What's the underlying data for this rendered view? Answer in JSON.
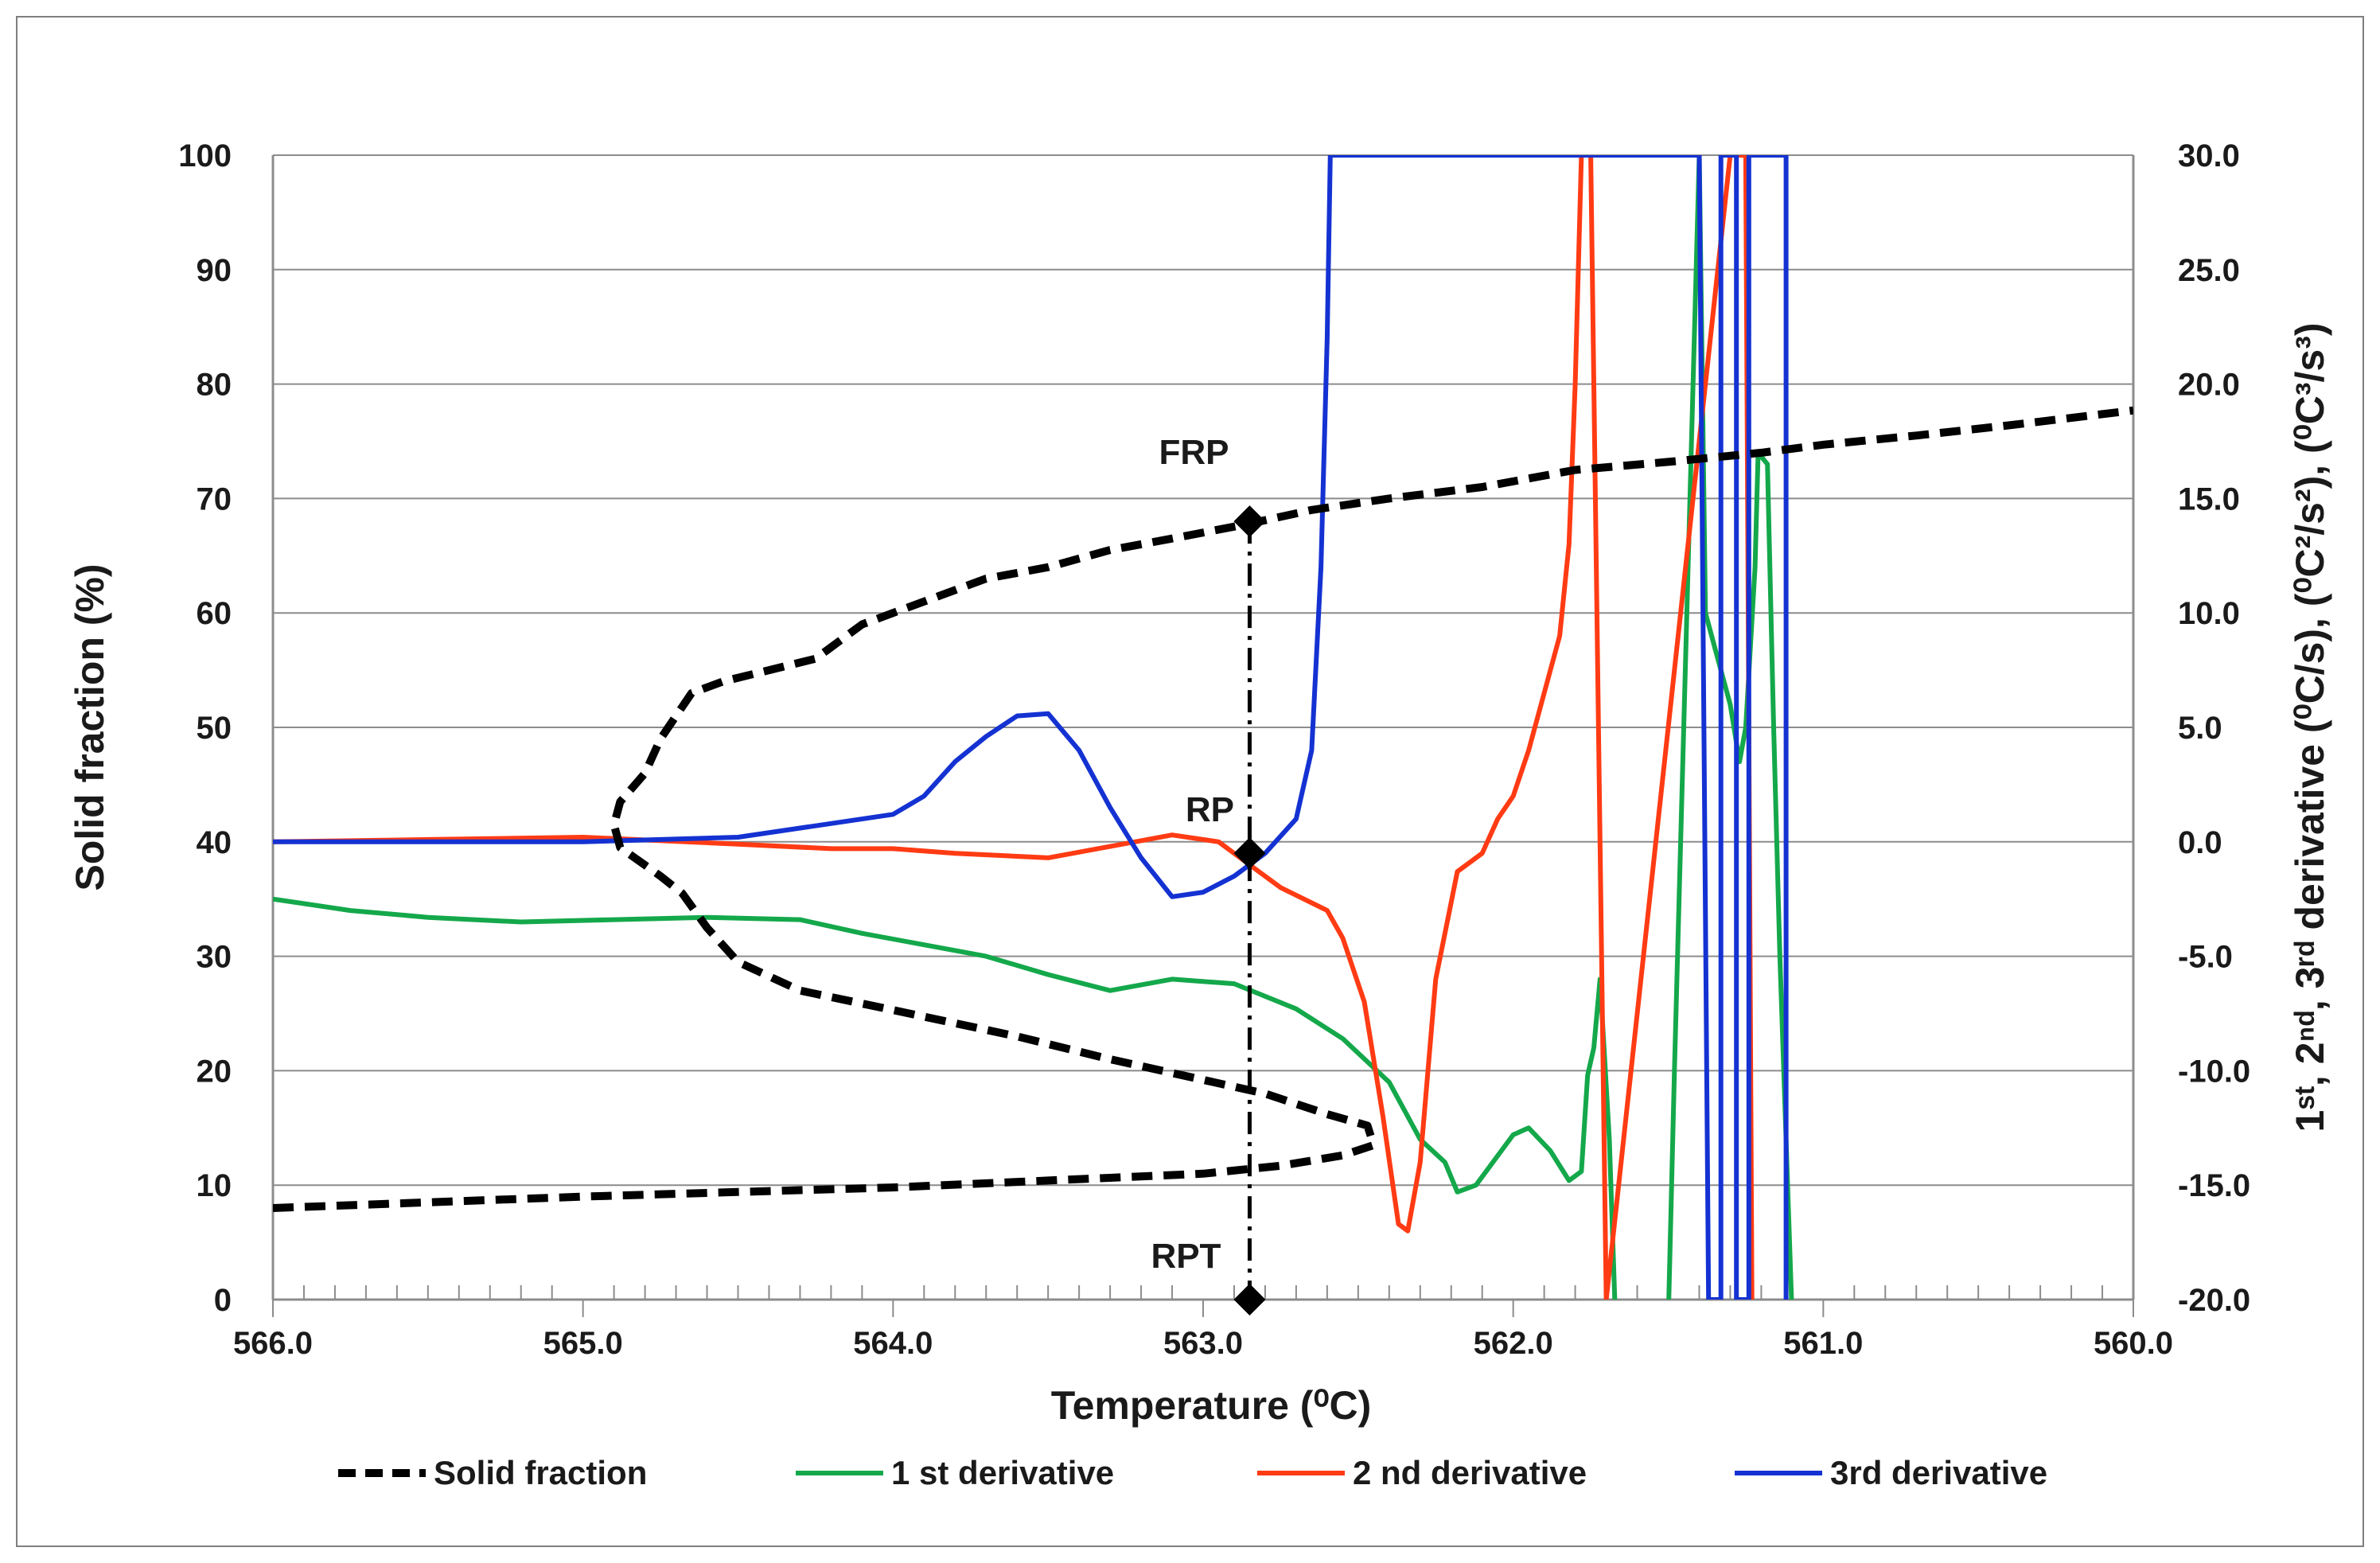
{
  "chart_data": {
    "type": "line",
    "xlabel": "Temperature (⁰C)",
    "ylabel": "Solid fraction (%)",
    "y2label": "1ˢᵗ, 2ⁿᵈ, 3ʳᵈ derivative (⁰C/s), (⁰C²/s²), (⁰C³/s³)",
    "xlim": [
      566.0,
      560.0
    ],
    "ylim": [
      0,
      100
    ],
    "y2lim": [
      -20.0,
      30.0
    ],
    "x_ticks": [
      "566.0",
      "565.0",
      "564.0",
      "563.0",
      "562.0",
      "561.0",
      "560.0"
    ],
    "y_ticks": [
      "0",
      "10",
      "20",
      "30",
      "40",
      "50",
      "60",
      "70",
      "80",
      "90",
      "100"
    ],
    "y2_ticks": [
      "-20.0",
      "-15.0",
      "-10.0",
      "-5.0",
      "0.0",
      "5.0",
      "10.0",
      "15.0",
      "20.0",
      "25.0",
      "30.0"
    ],
    "grid": true,
    "legend_position": "bottom",
    "series": [
      {
        "name": "Solid fraction",
        "color": "#000000",
        "style": "dashed",
        "axis": "left",
        "points": [
          [
            566.0,
            8.0
          ],
          [
            565.5,
            8.5
          ],
          [
            565.0,
            9.0
          ],
          [
            564.5,
            9.4
          ],
          [
            564.0,
            9.8
          ],
          [
            563.5,
            10.4
          ],
          [
            563.0,
            11.0
          ],
          [
            562.75,
            11.7
          ],
          [
            562.55,
            12.6
          ],
          [
            562.45,
            13.5
          ],
          [
            562.47,
            15.2
          ],
          [
            562.6,
            16.2
          ],
          [
            562.8,
            18.0
          ],
          [
            563.0,
            19.2
          ],
          [
            563.3,
            21.0
          ],
          [
            563.6,
            23.0
          ],
          [
            564.0,
            25.3
          ],
          [
            564.3,
            27.0
          ],
          [
            564.5,
            29.5
          ],
          [
            564.6,
            32.5
          ],
          [
            564.68,
            35.5
          ],
          [
            564.75,
            37.0
          ],
          [
            564.88,
            39.5
          ],
          [
            564.9,
            41.5
          ],
          [
            564.88,
            43.5
          ],
          [
            564.8,
            46.0
          ],
          [
            564.75,
            49.0
          ],
          [
            564.7,
            51.0
          ],
          [
            564.65,
            53.0
          ],
          [
            564.55,
            54.0
          ],
          [
            564.4,
            55.0
          ],
          [
            564.25,
            56.0
          ],
          [
            564.2,
            57.0
          ],
          [
            564.1,
            59.0
          ],
          [
            564.0,
            60.0
          ],
          [
            563.9,
            61.0
          ],
          [
            563.7,
            63.0
          ],
          [
            563.5,
            64.0
          ],
          [
            563.3,
            65.5
          ],
          [
            563.1,
            66.5
          ],
          [
            562.85,
            67.8
          ],
          [
            562.65,
            69.0
          ],
          [
            562.4,
            70.0
          ],
          [
            562.1,
            71.0
          ],
          [
            561.8,
            72.5
          ],
          [
            561.5,
            73.2
          ],
          [
            561.2,
            74.0
          ],
          [
            561.0,
            74.7
          ],
          [
            560.7,
            75.5
          ],
          [
            560.4,
            76.4
          ],
          [
            560.0,
            77.7
          ]
        ]
      },
      {
        "name": "1 st derivative",
        "color": "#14a84b",
        "axis": "right",
        "points": [
          [
            566.0,
            -2.5
          ],
          [
            565.75,
            -3.0
          ],
          [
            565.5,
            -3.3
          ],
          [
            565.2,
            -3.5
          ],
          [
            564.9,
            -3.4
          ],
          [
            564.6,
            -3.3
          ],
          [
            564.3,
            -3.4
          ],
          [
            564.1,
            -4.0
          ],
          [
            563.9,
            -4.5
          ],
          [
            563.7,
            -5.0
          ],
          [
            563.5,
            -5.8
          ],
          [
            563.3,
            -6.5
          ],
          [
            563.1,
            -6.0
          ],
          [
            562.9,
            -6.2
          ],
          [
            562.7,
            -7.3
          ],
          [
            562.55,
            -8.6
          ],
          [
            562.4,
            -10.5
          ],
          [
            562.3,
            -13.0
          ],
          [
            562.22,
            -14.0
          ],
          [
            562.18,
            -15.3
          ],
          [
            562.12,
            -15.0
          ],
          [
            562.0,
            -12.8
          ],
          [
            561.95,
            -12.5
          ],
          [
            561.88,
            -13.5
          ],
          [
            561.82,
            -14.8
          ],
          [
            561.78,
            -14.4
          ],
          [
            561.76,
            -10.2
          ],
          [
            561.74,
            -9.0
          ],
          [
            561.72,
            -6.0
          ],
          [
            561.69,
            -13.0
          ],
          [
            561.67,
            -21.0
          ],
          [
            561.5,
            -21.0
          ],
          [
            561.48,
            -10.0
          ],
          [
            561.45,
            5.0
          ],
          [
            561.42,
            20.0
          ],
          [
            561.4,
            30.0
          ],
          [
            561.38,
            10.0
          ],
          [
            561.35,
            8.5
          ],
          [
            561.3,
            6.0
          ],
          [
            561.27,
            3.5
          ],
          [
            561.25,
            5.0
          ],
          [
            561.22,
            12.0
          ],
          [
            561.21,
            17.0
          ],
          [
            561.18,
            16.5
          ],
          [
            561.16,
            5.0
          ],
          [
            561.14,
            -5.0
          ],
          [
            561.12,
            -13.0
          ],
          [
            561.1,
            -21.0
          ]
        ]
      },
      {
        "name": "2 nd derivative",
        "color": "#ff3b14",
        "axis": "right",
        "points": [
          [
            566.0,
            0.0
          ],
          [
            565.5,
            0.1
          ],
          [
            565.0,
            0.2
          ],
          [
            564.5,
            -0.1
          ],
          [
            564.2,
            -0.3
          ],
          [
            564.0,
            -0.3
          ],
          [
            563.8,
            -0.5
          ],
          [
            563.5,
            -0.7
          ],
          [
            563.3,
            -0.2
          ],
          [
            563.1,
            0.3
          ],
          [
            562.95,
            0.0
          ],
          [
            562.85,
            -1.0
          ],
          [
            562.75,
            -2.0
          ],
          [
            562.6,
            -3.0
          ],
          [
            562.55,
            -4.2
          ],
          [
            562.48,
            -7.0
          ],
          [
            562.42,
            -12.0
          ],
          [
            562.37,
            -16.7
          ],
          [
            562.34,
            -17.0
          ],
          [
            562.3,
            -14.0
          ],
          [
            562.25,
            -6.0
          ],
          [
            562.18,
            -1.3
          ],
          [
            562.1,
            -0.5
          ],
          [
            562.05,
            1.0
          ],
          [
            562.0,
            2.0
          ],
          [
            561.95,
            4.0
          ],
          [
            561.9,
            6.5
          ],
          [
            561.85,
            9.0
          ],
          [
            561.82,
            13.0
          ],
          [
            561.8,
            20.0
          ],
          [
            561.78,
            30.0
          ],
          [
            561.75,
            30.0
          ],
          [
            561.74,
            20.0
          ],
          [
            561.73,
            10.0
          ],
          [
            561.72,
            0.0
          ],
          [
            561.71,
            -10.0
          ],
          [
            561.7,
            -20.0
          ],
          [
            561.3,
            30.0
          ],
          [
            561.25,
            30.0
          ],
          [
            561.23,
            -20.0
          ]
        ]
      },
      {
        "name": "3rd derivative",
        "color": "#1432d2",
        "axis": "right",
        "points": [
          [
            566.0,
            0.0
          ],
          [
            565.5,
            0.0
          ],
          [
            565.0,
            0.0
          ],
          [
            564.5,
            0.2
          ],
          [
            564.2,
            0.8
          ],
          [
            564.0,
            1.2
          ],
          [
            563.9,
            2.0
          ],
          [
            563.8,
            3.5
          ],
          [
            563.7,
            4.6
          ],
          [
            563.6,
            5.5
          ],
          [
            563.5,
            5.6
          ],
          [
            563.4,
            4.0
          ],
          [
            563.3,
            1.5
          ],
          [
            563.2,
            -0.7
          ],
          [
            563.1,
            -2.4
          ],
          [
            563.0,
            -2.2
          ],
          [
            562.9,
            -1.5
          ],
          [
            562.8,
            -0.5
          ],
          [
            562.7,
            1.0
          ],
          [
            562.65,
            4.0
          ],
          [
            562.62,
            12.0
          ],
          [
            562.6,
            22.0
          ],
          [
            562.59,
            30.0
          ],
          [
            561.4,
            30.0
          ],
          [
            561.37,
            -20.0
          ],
          [
            561.33,
            -20.0
          ],
          [
            561.33,
            30.0
          ],
          [
            561.28,
            30.0
          ],
          [
            561.28,
            -20.0
          ],
          [
            561.24,
            -20.0
          ],
          [
            561.24,
            30.0
          ],
          [
            561.12,
            30.0
          ],
          [
            561.12,
            -20.0
          ]
        ]
      }
    ],
    "annotations": [
      {
        "label": "FRP",
        "x": 562.85,
        "y": 68
      },
      {
        "label": "RP",
        "x": 562.85,
        "y": 39
      },
      {
        "label": "RPT",
        "x": 562.85,
        "y": 0
      }
    ]
  }
}
